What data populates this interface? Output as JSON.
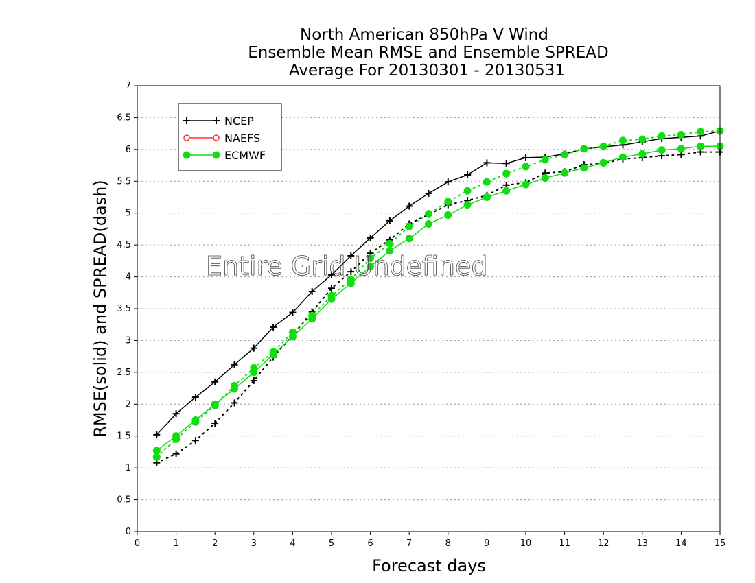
{
  "chart_data": {
    "type": "line",
    "title_lines": [
      "North American 850hPa V Wind",
      "Ensemble Mean RMSE and Ensemble SPREAD",
      "Average For 20130301 - 20130531"
    ],
    "xlabel": "Forecast days",
    "ylabel": "RMSE(solid) and SPREAD(dash)",
    "xlim": [
      0,
      15
    ],
    "ylim": [
      0,
      7
    ],
    "xticks": [
      "0",
      "1",
      "2",
      "3",
      "4",
      "5",
      "6",
      "7",
      "8",
      "9",
      "10",
      "11",
      "12",
      "13",
      "14",
      "15"
    ],
    "yticks": [
      "0",
      "0.5",
      "1",
      "1.5",
      "2",
      "2.5",
      "3",
      "3.5",
      "4",
      "4.5",
      "5",
      "5.5",
      "6",
      "6.5",
      "7"
    ],
    "grid": "horizontal dotted",
    "legend_position": "top-left",
    "annotation": "Entire Grid Undefined",
    "x": [
      0.5,
      1,
      1.5,
      2,
      2.5,
      3,
      3.5,
      4,
      4.5,
      5,
      5.5,
      6,
      6.5,
      7,
      7.5,
      8,
      8.5,
      9,
      9.5,
      10,
      10.5,
      11,
      11.5,
      12,
      12.5,
      13,
      13.5,
      14,
      14.5,
      15
    ],
    "series": [
      {
        "name": "NCEP",
        "color": "#000000",
        "marker": "plus",
        "rmse": [
          1.52,
          1.85,
          2.11,
          2.35,
          2.62,
          2.88,
          3.21,
          3.44,
          3.77,
          4.03,
          4.33,
          4.61,
          4.88,
          5.11,
          5.31,
          5.49,
          5.6,
          5.79,
          5.78,
          5.87,
          5.88,
          5.93,
          6.01,
          6.04,
          6.07,
          6.12,
          6.17,
          6.19,
          6.21,
          6.29
        ],
        "spread": [
          1.08,
          1.22,
          1.43,
          1.7,
          2.02,
          2.37,
          2.74,
          3.08,
          3.45,
          3.82,
          4.08,
          4.37,
          4.58,
          4.83,
          4.98,
          5.13,
          5.2,
          5.28,
          5.44,
          5.48,
          5.63,
          5.65,
          5.76,
          5.78,
          5.85,
          5.87,
          5.9,
          5.92,
          5.96,
          5.96
        ]
      },
      {
        "name": "NAEFS",
        "color": "#ff3333",
        "marker": "open-circle",
        "rmse": [],
        "spread": []
      },
      {
        "name": "ECMWF",
        "color": "#11dd11",
        "marker": "filled-circle",
        "rmse": [
          1.27,
          1.5,
          1.75,
          2.0,
          2.24,
          2.5,
          2.78,
          3.06,
          3.34,
          3.65,
          3.9,
          4.16,
          4.41,
          4.6,
          4.83,
          4.97,
          5.13,
          5.25,
          5.35,
          5.45,
          5.55,
          5.63,
          5.71,
          5.79,
          5.88,
          5.93,
          5.99,
          6.01,
          6.05,
          6.05
        ],
        "spread": [
          1.17,
          1.45,
          1.72,
          1.98,
          2.29,
          2.57,
          2.82,
          3.13,
          3.39,
          3.7,
          3.96,
          4.29,
          4.52,
          4.79,
          4.99,
          5.18,
          5.35,
          5.49,
          5.62,
          5.73,
          5.84,
          5.92,
          6.01,
          6.05,
          6.14,
          6.16,
          6.21,
          6.23,
          6.28,
          6.29
        ]
      }
    ]
  }
}
